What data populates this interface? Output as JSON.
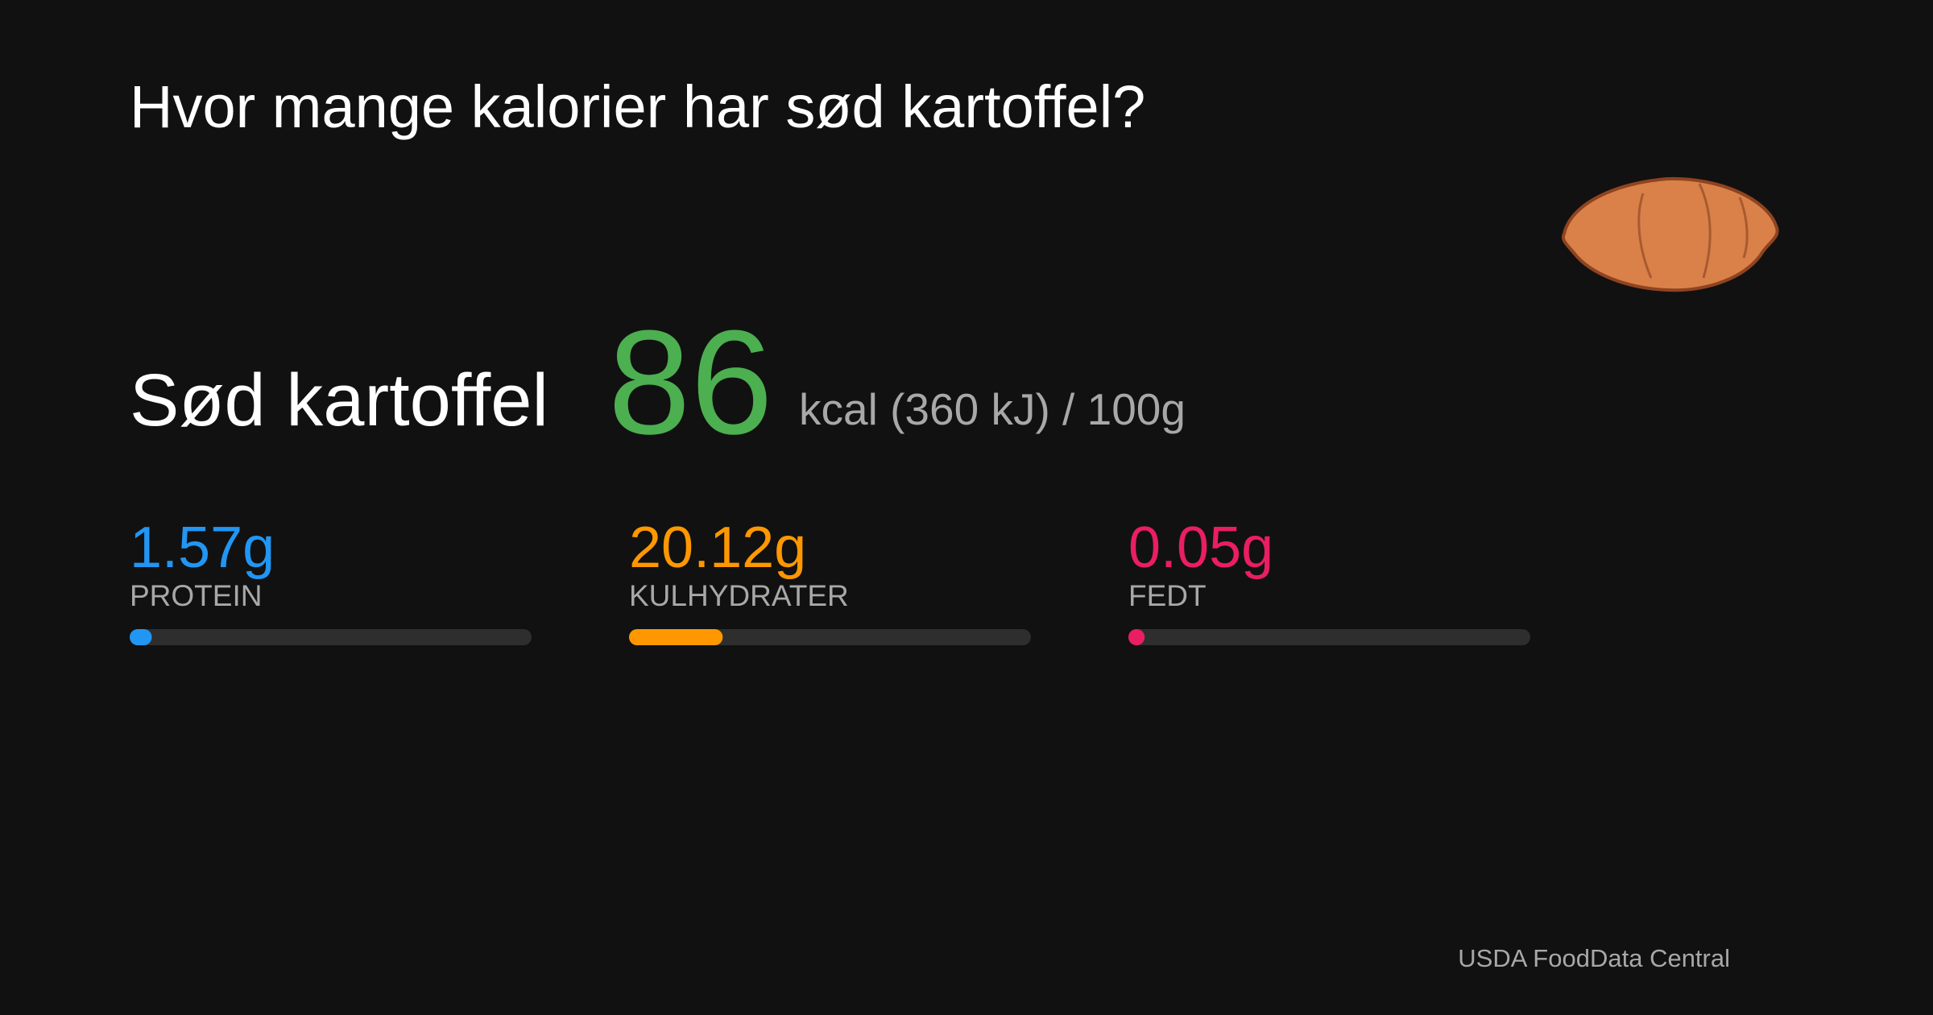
{
  "title": "Hvor mange kalorier har sød kartoffel?",
  "food": "Sød kartoffel",
  "kcal": 86,
  "unit": "kcal (360 kJ) /",
  "portion": {
    "value": 100,
    "label": "100g"
  },
  "macros": [
    {
      "value": 1.57,
      "label": "1.57g",
      "name": "PROTEIN",
      "color": "#2196f3"
    },
    {
      "value": 20.12,
      "label": "20.12g",
      "name": "KULHYDRATER",
      "color": "#ff9800"
    },
    {
      "value": 0.05,
      "label": "0.05g",
      "name": "FEDT",
      "color": "#e91e63"
    }
  ],
  "source": "USDA FoodData Central"
}
